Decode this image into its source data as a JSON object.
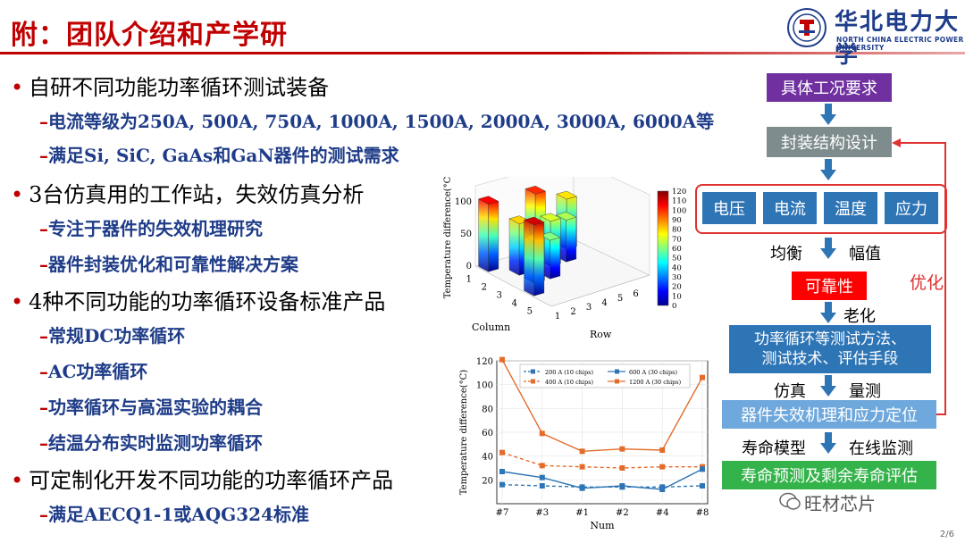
{
  "header": {
    "title": "附：团队介绍和产学研",
    "university_cn": "华北电力大学",
    "university_en": "NORTH CHINA ELECTRIC POWER UNIVERSITY"
  },
  "bullets": [
    {
      "text": "自研不同功能功率循环测试装备",
      "sub": [
        "电流等级为250A, 500A, 750A, 1000A, 1500A, 2000A, 3000A, 6000A等",
        "满足Si, SiC, GaAs和GaN器件的测试需求"
      ]
    },
    {
      "text": "3台仿真用的工作站，失效仿真分析",
      "sub": [
        "专注于器件的失效机理研究",
        "器件封装优化和可靠性解决方案"
      ]
    },
    {
      "text": "4种不同功能的功率循环设备标准产品",
      "sub": [
        "常规DC功率循环",
        "AC功率循环",
        "功率循环与高温实验的耦合",
        "结温分布实时监测功率循环"
      ]
    },
    {
      "text": "可定制化开发不同功能的功率循环产品",
      "sub": [
        "满足AECQ1-1或AQG324标准"
      ]
    }
  ],
  "chart_data": [
    {
      "type": "bar3d",
      "zlabel": "Temperature difference(°C)",
      "xlabel": "Column",
      "ylabel": "Row",
      "column_ticks": [
        "1",
        "2",
        "3",
        "4",
        "5"
      ],
      "row_ticks": [
        "1",
        "2",
        "3",
        "4",
        "5",
        "6"
      ],
      "z_ticks": [
        "0",
        "50",
        "100"
      ],
      "colorbar_ticks": [
        "0",
        "10",
        "20",
        "30",
        "40",
        "50",
        "60",
        "70",
        "80",
        "90",
        "100",
        "110",
        "120"
      ],
      "bars": [
        {
          "col": 1,
          "row": 1,
          "value": 105
        },
        {
          "col": 2,
          "row": 2,
          "value": 80
        },
        {
          "col": 3,
          "row": 2,
          "value": 65
        },
        {
          "col": 3,
          "row": 3,
          "value": 60
        },
        {
          "col": 2,
          "row": 4,
          "value": 70
        },
        {
          "col": 1,
          "row": 4,
          "value": 100
        },
        {
          "col": 2,
          "row": 5,
          "value": 65
        },
        {
          "col": 1,
          "row": 6,
          "value": 78
        },
        {
          "col": 4,
          "row": 1,
          "value": 110
        }
      ]
    },
    {
      "type": "line",
      "categories": [
        "#7",
        "#3",
        "#1",
        "#2",
        "#4",
        "#8"
      ],
      "xlabel": "Num",
      "ylabel": "Temperature difference(°C)",
      "ylim": [
        0,
        120
      ],
      "yticks": [
        20,
        40,
        60,
        80,
        100,
        120
      ],
      "series": [
        {
          "name": "200 A (10 chips)",
          "color": "#2e75b6",
          "dash": true,
          "marker": "square",
          "values": [
            16,
            15,
            14,
            14,
            14,
            15
          ]
        },
        {
          "name": "400 A (10 chips)",
          "color": "#e36c2b",
          "dash": true,
          "marker": "square",
          "values": [
            43,
            32,
            31,
            30,
            31,
            31
          ]
        },
        {
          "name": "600 A (30 chips)",
          "color": "#2e75b6",
          "dash": false,
          "marker": "square",
          "values": [
            27,
            22,
            13,
            15,
            12,
            29
          ]
        },
        {
          "name": "1200 A (30 chips)",
          "color": "#e36c2b",
          "dash": false,
          "marker": "square",
          "values": [
            121,
            59,
            44,
            46,
            45,
            106
          ]
        }
      ]
    }
  ],
  "flow": {
    "step1": "具体工况要求",
    "step2": "封装结构设计",
    "factors": [
      "电压",
      "电流",
      "温度",
      "应力"
    ],
    "label_balance": "均衡",
    "label_amplitude": "幅值",
    "step3": "可靠性",
    "label_aging": "老化",
    "step4_line1": "功率循环等测试方法、",
    "step4_line2": "测试技术、评估手段",
    "label_sim": "仿真",
    "label_measure": "量测",
    "step5": "器件失效机理和应力定位",
    "label_life_model": "寿命模型",
    "label_online": "在线监测",
    "step6": "寿命预测及剩余寿命评估",
    "feedback": "优化"
  },
  "footer": {
    "page": "2/6",
    "watermark": "旺材芯片"
  }
}
